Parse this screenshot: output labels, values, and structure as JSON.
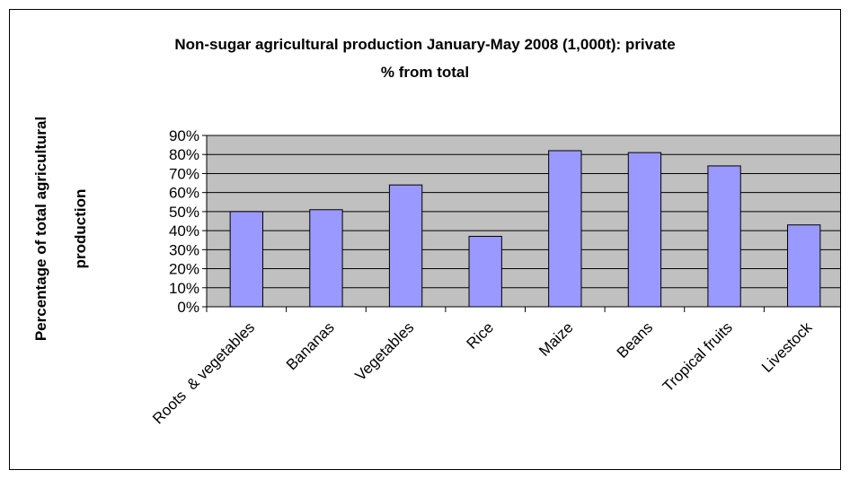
{
  "chart_data": {
    "type": "bar",
    "title": [
      "Non-sugar agricultural production January-May 2008 (1,000t): private",
      "% from total"
    ],
    "xlabel": "",
    "ylabel": [
      "Percentage of total agricultural",
      "production"
    ],
    "categories": [
      "Roots  & vegetables",
      "Bananas",
      "Vegetables",
      "Rice",
      "Maize",
      "Beans",
      "Tropical fruits",
      "Livestock"
    ],
    "values": [
      0.5,
      0.51,
      0.64,
      0.37,
      0.82,
      0.81,
      0.74,
      0.43
    ],
    "ylim": [
      0,
      0.9
    ],
    "yticks": [
      0,
      0.1,
      0.2,
      0.3,
      0.4,
      0.5,
      0.6,
      0.7,
      0.8,
      0.9
    ],
    "ytick_labels": [
      "0%",
      "10%",
      "20%",
      "30%",
      "40%",
      "50%",
      "60%",
      "70%",
      "80%",
      "90%"
    ],
    "grid": true,
    "legend": "none",
    "colors": {
      "bar": "#9999ff",
      "plot_bg": "#c0c0c0",
      "bar_edge": "#000000"
    }
  }
}
